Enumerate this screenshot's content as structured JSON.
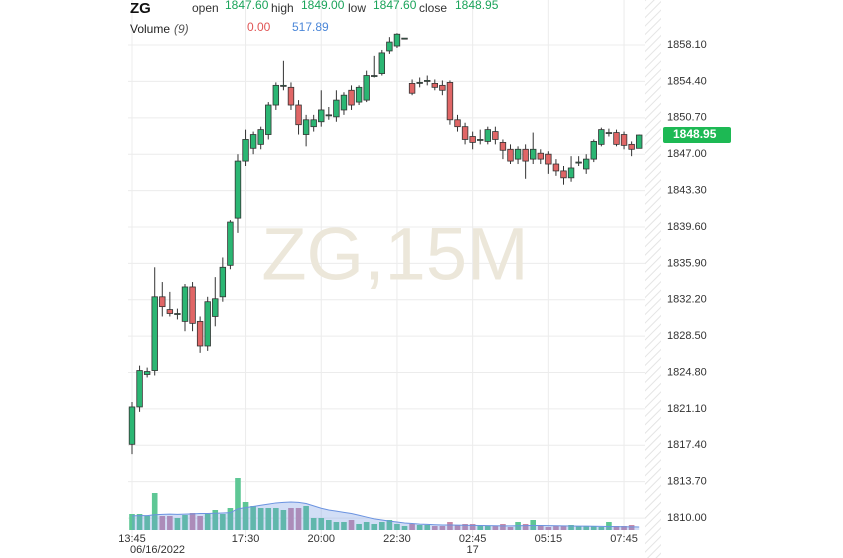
{
  "chart_data": {
    "type": "candlestick",
    "symbol": "ZG",
    "watermark": "ZG,15M",
    "fields": [
      {
        "name": "open",
        "value": "1847.60"
      },
      {
        "name": "high",
        "value": "1849.00"
      },
      {
        "name": "low",
        "value": "1847.60"
      },
      {
        "name": "close",
        "value": "1848.95"
      }
    ],
    "volume_legend": {
      "name": "Volume",
      "period": "(9)",
      "value": "0.00",
      "ma": "517.89"
    },
    "categories": [
      "13:45",
      null,
      null,
      null,
      null,
      null,
      null,
      null,
      null,
      null,
      null,
      null,
      null,
      null,
      null,
      "17:30",
      null,
      null,
      null,
      null,
      null,
      null,
      null,
      null,
      null,
      "20:00",
      null,
      null,
      null,
      null,
      null,
      null,
      null,
      null,
      null,
      "22:30",
      null,
      null,
      null,
      null,
      null,
      null,
      null,
      null,
      null,
      "02:45",
      null,
      null,
      null,
      null,
      null,
      null,
      null,
      null,
      null,
      "05:15",
      null,
      null,
      null,
      null,
      null,
      null,
      null,
      null,
      null,
      "07:45",
      null,
      null
    ],
    "sublabels": [
      "06/16/2022",
      null,
      null,
      null,
      null,
      null,
      null,
      null,
      null,
      null,
      null,
      null,
      null,
      null,
      null,
      null,
      null,
      null,
      null,
      null,
      null,
      null,
      null,
      null,
      null,
      null,
      null,
      null,
      null,
      null,
      null,
      null,
      null,
      null,
      null,
      null,
      null,
      null,
      null,
      null,
      null,
      null,
      null,
      null,
      null,
      "17",
      null,
      null,
      null,
      null,
      null,
      null,
      null,
      null,
      null,
      null,
      null,
      null,
      null,
      null,
      null,
      null,
      null,
      null,
      null,
      null,
      null,
      null
    ],
    "open": [
      1817.5,
      1821.3,
      1824.6,
      1825.0,
      1832.5,
      1831.2,
      1830.8,
      1830.0,
      1833.5,
      1830.0,
      1827.5,
      1830.5,
      1832.5,
      1835.7,
      1840.5,
      1846.3,
      1847.6,
      1848.0,
      1849.0,
      1852.0,
      1854.0,
      1853.8,
      1852.0,
      1849.0,
      1849.8,
      1850.3,
      1851.0,
      1850.8,
      1851.5,
      1853.5,
      1852.3,
      1852.5,
      1855.0,
      1855.2,
      1857.5,
      1858.0,
      1858.8,
      1854.2,
      1854.3,
      1854.5,
      1854.2,
      1854.0,
      1854.3,
      1850.5,
      1849.8,
      1848.8,
      1848.5,
      1848.3,
      1849.3,
      1848.2,
      1847.5,
      1846.5,
      1847.5,
      1846.5,
      1847.1,
      1847.0,
      1846.0,
      1845.3,
      1844.6,
      1846.2,
      1845.5,
      1846.5,
      1848.0,
      1849.2,
      1849.2,
      1849.0,
      1848.0,
      1847.6
    ],
    "high": [
      1821.8,
      1825.5,
      1825.3,
      1835.5,
      1834.0,
      1833.0,
      1831.3,
      1833.8,
      1834.0,
      1830.5,
      1832.5,
      1834.5,
      1836.5,
      1840.3,
      1847.0,
      1849.5,
      1849.3,
      1849.8,
      1852.3,
      1854.3,
      1856.5,
      1854.3,
      1852.5,
      1851.0,
      1851.0,
      1853.5,
      1851.8,
      1853.5,
      1853.3,
      1854.0,
      1854.0,
      1855.5,
      1857.0,
      1857.6,
      1858.9,
      1859.3,
      1858.8,
      1854.6,
      1854.8,
      1855.0,
      1854.6,
      1854.5,
      1854.5,
      1851.0,
      1850.2,
      1849.3,
      1849.5,
      1849.8,
      1849.8,
      1848.5,
      1848.0,
      1847.8,
      1848.0,
      1849.2,
      1847.5,
      1847.3,
      1846.5,
      1845.8,
      1846.8,
      1846.8,
      1847.0,
      1848.5,
      1849.7,
      1849.6,
      1849.5,
      1849.3,
      1848.3,
      1849.0
    ],
    "low": [
      1816.5,
      1820.8,
      1824.3,
      1824.5,
      1830.5,
      1830.5,
      1830.2,
      1829.0,
      1829.0,
      1826.8,
      1827.0,
      1829.5,
      1832.0,
      1835.3,
      1839.0,
      1845.8,
      1847.0,
      1847.5,
      1848.5,
      1851.5,
      1853.5,
      1851.5,
      1849.0,
      1847.8,
      1849.3,
      1849.8,
      1850.5,
      1850.3,
      1851.0,
      1851.5,
      1852.0,
      1852.3,
      1854.8,
      1855.0,
      1857.2,
      1857.8,
      1858.8,
      1853.0,
      1853.8,
      1854.0,
      1853.5,
      1853.0,
      1850.0,
      1849.3,
      1848.0,
      1847.5,
      1848.0,
      1848.0,
      1848.0,
      1846.5,
      1846.0,
      1846.0,
      1844.5,
      1846.0,
      1846.0,
      1845.0,
      1844.8,
      1843.9,
      1844.2,
      1845.8,
      1845.0,
      1846.2,
      1847.8,
      1848.8,
      1847.8,
      1847.5,
      1846.8,
      1847.6
    ],
    "close": [
      1821.3,
      1825.0,
      1824.9,
      1832.5,
      1831.5,
      1830.8,
      1830.8,
      1833.5,
      1829.8,
      1827.5,
      1832.0,
      1832.3,
      1835.5,
      1840.1,
      1846.3,
      1848.5,
      1849.0,
      1849.5,
      1852.0,
      1854.0,
      1854.0,
      1852.0,
      1850.0,
      1850.5,
      1850.5,
      1851.5,
      1851.0,
      1852.5,
      1853.0,
      1852.0,
      1853.8,
      1855.0,
      1855.0,
      1857.3,
      1858.4,
      1859.2,
      1858.8,
      1853.2,
      1854.3,
      1854.5,
      1853.8,
      1853.5,
      1850.5,
      1849.8,
      1848.5,
      1848.2,
      1848.5,
      1849.5,
      1848.5,
      1847.4,
      1846.3,
      1847.5,
      1846.3,
      1847.5,
      1846.5,
      1846.0,
      1845.3,
      1844.6,
      1845.6,
      1846.2,
      1846.5,
      1848.3,
      1849.5,
      1849.2,
      1848.0,
      1847.9,
      1847.5,
      1848.95
    ],
    "volume": [
      2720,
      2720,
      2380,
      6290,
      2380,
      2380,
      2040,
      2550,
      2890,
      2380,
      2720,
      3400,
      2720,
      3740,
      8840,
      4760,
      4080,
      3740,
      3740,
      3740,
      3400,
      3740,
      3740,
      4080,
      2040,
      2040,
      1700,
      1360,
      1360,
      1700,
      1020,
      1360,
      1020,
      1360,
      1700,
      1020,
      680,
      1020,
      850,
      850,
      680,
      680,
      1360,
      850,
      1020,
      1020,
      680,
      680,
      680,
      1020,
      510,
      1360,
      1020,
      1700,
      680,
      510,
      680,
      680,
      850,
      680,
      680,
      680,
      510,
      1360,
      680,
      680,
      850,
      0
    ],
    "volume_ma": [
      2400,
      2450,
      2450,
      2600,
      2650,
      2700,
      2650,
      2700,
      2750,
      2800,
      2800,
      2850,
      2900,
      2950,
      3600,
      3800,
      4000,
      4200,
      4400,
      4600,
      4700,
      4750,
      4700,
      4500,
      4100,
      3700,
      3400,
      3200,
      3000,
      2800,
      2500,
      2200,
      1900,
      1700,
      1500,
      1350,
      1200,
      1100,
      1000,
      950,
      900,
      850,
      850,
      820,
      800,
      780,
      760,
      740,
      720,
      700,
      700,
      720,
      740,
      760,
      760,
      740,
      720,
      700,
      680,
      660,
      650,
      640,
      620,
      600,
      580,
      560,
      540,
      517.89
    ],
    "ylim": [
      1807.77,
      1862.68
    ],
    "volume_ylim": [
      0,
      11900
    ],
    "yticks": [
      {
        "value": 1858.1,
        "label": "1858.10"
      },
      {
        "value": 1854.4,
        "label": "1854.40"
      },
      {
        "value": 1850.7,
        "label": "1850.70"
      },
      {
        "value": 1847.0,
        "label": "1847.00"
      },
      {
        "value": 1843.3,
        "label": "1843.30"
      },
      {
        "value": 1839.6,
        "label": "1839.60"
      },
      {
        "value": 1835.9,
        "label": "1835.90"
      },
      {
        "value": 1832.2,
        "label": "1832.20"
      },
      {
        "value": 1828.5,
        "label": "1828.50"
      },
      {
        "value": 1824.8,
        "label": "1824.80"
      },
      {
        "value": 1821.1,
        "label": "1821.10"
      },
      {
        "value": 1817.4,
        "label": "1817.40"
      },
      {
        "value": 1813.7,
        "label": "1813.70"
      },
      {
        "value": 1810.0,
        "label": "1810.00"
      }
    ],
    "last_price": {
      "value": 1848.95,
      "label": "1848.95"
    },
    "grid": true,
    "up_color": "#2bb673",
    "down_color": "#e06666",
    "volume_up_color": "#5ec795",
    "volume_down_color": "#c98aa8",
    "volume_ma_color": "#6b93e0"
  }
}
